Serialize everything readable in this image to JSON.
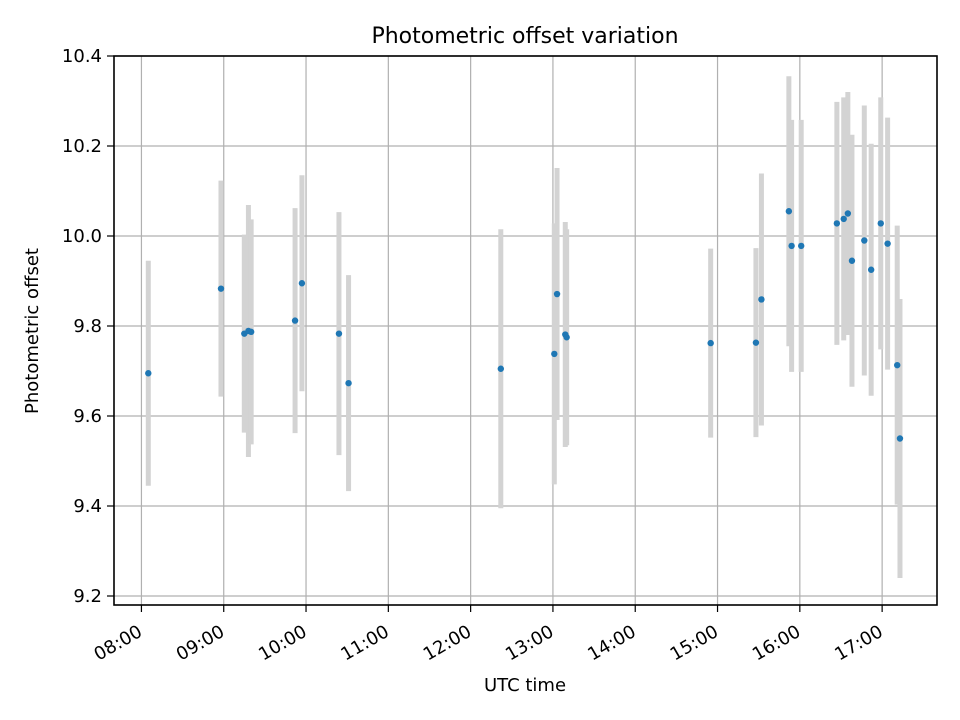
{
  "chart_data": {
    "type": "scatter",
    "title": "Photometric offset variation",
    "xlabel": "UTC time",
    "ylabel": "Photometric offset",
    "xlim": [
      "07:40",
      "17:40"
    ],
    "ylim": [
      9.18,
      10.4
    ],
    "x_ticks": [
      "08:00",
      "09:00",
      "10:00",
      "11:00",
      "12:00",
      "13:00",
      "14:00",
      "15:00",
      "16:00",
      "17:00"
    ],
    "y_ticks": [
      "9.2",
      "9.4",
      "9.6",
      "9.8",
      "10.0",
      "10.2",
      "10.4"
    ],
    "grid": true,
    "marker_color": "#1f77b4",
    "errorbar_color": "#d3d3d3",
    "points": [
      {
        "t": "08:05",
        "y": 9.695,
        "err": 0.25
      },
      {
        "t": "08:58",
        "y": 9.883,
        "err": 0.24
      },
      {
        "t": "09:15",
        "y": 9.783,
        "err": 0.22
      },
      {
        "t": "09:18",
        "y": 9.789,
        "err": 0.28
      },
      {
        "t": "09:20",
        "y": 9.787,
        "err": 0.25
      },
      {
        "t": "09:52",
        "y": 9.812,
        "err": 0.25
      },
      {
        "t": "09:57",
        "y": 9.895,
        "err": 0.24
      },
      {
        "t": "10:24",
        "y": 9.783,
        "err": 0.27
      },
      {
        "t": "10:31",
        "y": 9.673,
        "err": 0.24
      },
      {
        "t": "12:22",
        "y": 9.705,
        "err": 0.31
      },
      {
        "t": "13:01",
        "y": 9.738,
        "err": 0.29
      },
      {
        "t": "13:03",
        "y": 9.871,
        "err": 0.28
      },
      {
        "t": "13:09",
        "y": 9.781,
        "err": 0.25
      },
      {
        "t": "13:10",
        "y": 9.775,
        "err": 0.24
      },
      {
        "t": "14:55",
        "y": 9.762,
        "err": 0.21
      },
      {
        "t": "15:28",
        "y": 9.763,
        "err": 0.21
      },
      {
        "t": "15:32",
        "y": 9.859,
        "err": 0.28
      },
      {
        "t": "15:52",
        "y": 10.055,
        "err": 0.3
      },
      {
        "t": "15:54",
        "y": 9.978,
        "err": 0.28
      },
      {
        "t": "16:01",
        "y": 9.978,
        "err": 0.28
      },
      {
        "t": "16:27",
        "y": 10.028,
        "err": 0.27
      },
      {
        "t": "16:32",
        "y": 10.038,
        "err": 0.27
      },
      {
        "t": "16:35",
        "y": 10.05,
        "err": 0.27
      },
      {
        "t": "16:38",
        "y": 9.945,
        "err": 0.28
      },
      {
        "t": "16:47",
        "y": 9.99,
        "err": 0.3
      },
      {
        "t": "16:52",
        "y": 9.925,
        "err": 0.28
      },
      {
        "t": "16:59",
        "y": 10.028,
        "err": 0.28
      },
      {
        "t": "17:04",
        "y": 9.983,
        "err": 0.28
      },
      {
        "t": "17:11",
        "y": 9.713,
        "err": 0.31
      },
      {
        "t": "17:13",
        "y": 9.55,
        "err": 0.31
      }
    ]
  }
}
